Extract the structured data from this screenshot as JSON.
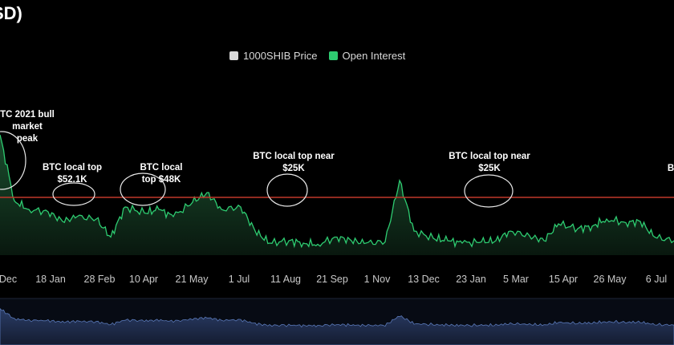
{
  "title": "SD)",
  "legend": {
    "items": [
      {
        "label": "1000SHIB Price",
        "color": "#d9d9d9"
      },
      {
        "label": "Open Interest",
        "color": "#2ecc71"
      }
    ]
  },
  "colors": {
    "background": "#000000",
    "oi_line": "#2ecc71",
    "oi_fill_top": "#1f5a35",
    "ref_line": "#c0392b",
    "navigator_fill": "#1c2a4a",
    "navigator_line": "#5a79b8",
    "annotation_circle": "#e8e8e8"
  },
  "chart_data": {
    "type": "area",
    "title": "",
    "xlabel": "",
    "ylabel": "",
    "x_ticks": [
      "Dec",
      "18 Jan",
      "28 Feb",
      "10 Apr",
      "21 May",
      "1 Jul",
      "11 Aug",
      "21 Sep",
      "1 Nov",
      "13 Dec",
      "23 Jan",
      "5 Mar",
      "15 Apr",
      "26 May",
      "6 Jul"
    ],
    "y_range": [
      0,
      100
    ],
    "reference_line_value": 48,
    "series": [
      {
        "name": "Open Interest",
        "x": [
          0,
          0.3,
          0.6,
          1,
          1.3,
          1.6,
          2,
          2.3,
          2.6,
          3,
          3.3,
          3.6,
          4,
          4.3,
          4.6,
          5,
          5.3,
          5.6,
          6,
          6.3,
          6.6,
          7,
          7.3,
          7.6,
          8,
          8.3,
          8.6,
          9,
          9.3,
          9.6,
          10,
          10.3,
          10.6,
          11,
          11.3,
          11.6,
          12,
          12.3,
          12.6,
          13,
          13.3,
          13.6,
          14
        ],
        "values": [
          100,
          45,
          38,
          36,
          28,
          32,
          30,
          15,
          40,
          35,
          38,
          32,
          44,
          52,
          38,
          40,
          20,
          10,
          12,
          10,
          9,
          15,
          12,
          10,
          11,
          62,
          20,
          14,
          12,
          10,
          11,
          12,
          20,
          16,
          12,
          26,
          22,
          24,
          30,
          27,
          28,
          15,
          12
        ]
      }
    ],
    "annotations": [
      {
        "label": "TC 2021 bull market peak",
        "lines": [
          "TC 2021 bull",
          "market",
          "peak"
        ]
      },
      {
        "label": "BTC local top $52.1K",
        "lines": [
          "BTC local top",
          "$52.1K"
        ]
      },
      {
        "label": "BTC local top $48K",
        "lines": [
          "BTC local",
          "top $48K"
        ]
      },
      {
        "label": "BTC local top near $25K",
        "lines": [
          "BTC local top near",
          "$25K"
        ]
      },
      {
        "label": "BTC local top near $25K",
        "lines": [
          "BTC local top near",
          "$25K"
        ]
      },
      {
        "label": "B",
        "lines": [
          "B"
        ]
      }
    ],
    "grid": false,
    "legend_position": "top-center"
  }
}
